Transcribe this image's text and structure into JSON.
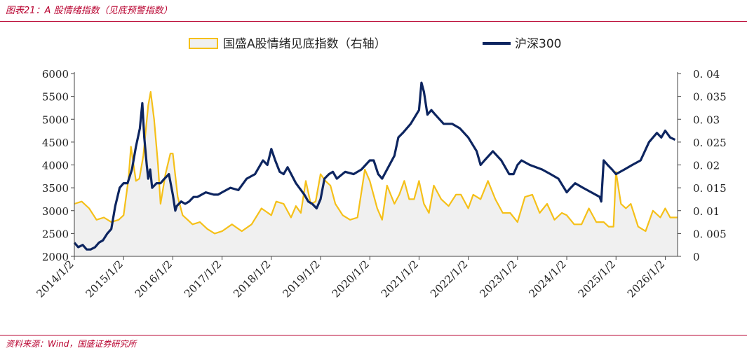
{
  "figure_title": "图表21：A 股情绪指数（见底预警指数）",
  "source": "资料来源：Wind，国盛证券研究所",
  "chart_data": {
    "type": "area",
    "legend": {
      "placement": "top-center",
      "entries": [
        {
          "label": "国盛A股情绪见底指数（右轴）",
          "style": "area",
          "color": "#f5c019",
          "fill": "#f0f0f0"
        },
        {
          "label": "沪深300",
          "style": "line",
          "color": "#0d2560"
        }
      ]
    },
    "yleft": {
      "min": 2000,
      "max": 6000,
      "ticks": [
        "2000",
        "2500",
        "3000",
        "3500",
        "4000",
        "4500",
        "5000",
        "5500",
        "6000"
      ]
    },
    "yright": {
      "min": 0,
      "max": 0.04,
      "ticks": [
        "0",
        "0.005",
        "0.01",
        "0.015",
        "0.02",
        "0.025",
        "0.03",
        "0.035",
        "0.04"
      ]
    },
    "xaxis": {
      "ticks": [
        "2014/1/2",
        "2015/1/2",
        "2016/1/2",
        "2017/1/2",
        "2018/1/2",
        "2019/1/2",
        "2020/1/2",
        "2021/1/2",
        "2022/1/2",
        "2023/1/2",
        "2024/1/2",
        "2025/1/2",
        "2026/1/2"
      ]
    },
    "series": [
      {
        "name": "国盛A股情绪见底指数（右轴）",
        "axis": "right",
        "x": [
          2014.0,
          2014.15,
          2014.3,
          2014.45,
          2014.6,
          2014.75,
          2014.9,
          2015.0,
          2015.1,
          2015.15,
          2015.25,
          2015.32,
          2015.4,
          2015.5,
          2015.55,
          2015.62,
          2015.7,
          2015.75,
          2015.85,
          2015.95,
          2016.0,
          2016.1,
          2016.2,
          2016.3,
          2016.4,
          2016.55,
          2016.7,
          2016.85,
          2017.0,
          2017.2,
          2017.4,
          2017.6,
          2017.8,
          2018.0,
          2018.1,
          2018.25,
          2018.4,
          2018.5,
          2018.6,
          2018.7,
          2018.8,
          2018.9,
          2019.0,
          2019.1,
          2019.2,
          2019.3,
          2019.45,
          2019.6,
          2019.75,
          2019.9,
          2020.0,
          2020.15,
          2020.25,
          2020.35,
          2020.5,
          2020.6,
          2020.7,
          2020.8,
          2020.9,
          2021.0,
          2021.1,
          2021.2,
          2021.3,
          2021.45,
          2021.6,
          2021.75,
          2021.85,
          2022.0,
          2022.1,
          2022.25,
          2022.4,
          2022.55,
          2022.7,
          2022.85,
          2023.0,
          2023.15,
          2023.3,
          2023.45,
          2023.6,
          2023.75,
          2023.9,
          2024.0,
          2024.15,
          2024.3,
          2024.45,
          2024.6,
          2024.75,
          2024.85,
          2024.95,
          2025.0,
          2025.1,
          2025.2,
          2025.3,
          2025.45,
          2025.6,
          2025.75,
          2025.9,
          2026.0,
          2026.1,
          2026.25
        ],
        "values": [
          0.0115,
          0.012,
          0.0105,
          0.008,
          0.0085,
          0.0075,
          0.008,
          0.009,
          0.017,
          0.024,
          0.0165,
          0.017,
          0.022,
          0.033,
          0.036,
          0.03,
          0.02,
          0.0115,
          0.018,
          0.0225,
          0.0225,
          0.013,
          0.009,
          0.008,
          0.007,
          0.0075,
          0.006,
          0.005,
          0.0055,
          0.007,
          0.0055,
          0.007,
          0.0105,
          0.009,
          0.012,
          0.0115,
          0.0085,
          0.011,
          0.0095,
          0.0165,
          0.0115,
          0.012,
          0.018,
          0.0165,
          0.0155,
          0.0115,
          0.009,
          0.008,
          0.0085,
          0.019,
          0.0165,
          0.0105,
          0.008,
          0.0155,
          0.0115,
          0.0135,
          0.0165,
          0.0125,
          0.0125,
          0.0165,
          0.0115,
          0.0095,
          0.0155,
          0.0125,
          0.011,
          0.0135,
          0.0135,
          0.0105,
          0.0135,
          0.0125,
          0.0165,
          0.0125,
          0.0095,
          0.0095,
          0.0075,
          0.013,
          0.0135,
          0.0095,
          0.0115,
          0.008,
          0.0095,
          0.009,
          0.007,
          0.007,
          0.0105,
          0.0075,
          0.0075,
          0.0065,
          0.0065,
          0.0185,
          0.0115,
          0.0105,
          0.0115,
          0.0065,
          0.0055,
          0.01,
          0.0085,
          0.0105,
          0.0085,
          0.0085
        ]
      },
      {
        "name": "沪深300",
        "axis": "left",
        "x": [
          2014.0,
          2014.08,
          2014.17,
          2014.25,
          2014.33,
          2014.42,
          2014.5,
          2014.58,
          2014.67,
          2014.75,
          2014.83,
          2014.92,
          2015.0,
          2015.08,
          2015.17,
          2015.25,
          2015.33,
          2015.38,
          2015.42,
          2015.47,
          2015.5,
          2015.54,
          2015.58,
          2015.67,
          2015.75,
          2015.83,
          2015.92,
          2016.0,
          2016.05,
          2016.08,
          2016.17,
          2016.25,
          2016.33,
          2016.42,
          2016.5,
          2016.67,
          2016.83,
          2016.92,
          2017.0,
          2017.17,
          2017.33,
          2017.5,
          2017.67,
          2017.83,
          2017.92,
          2018.0,
          2018.08,
          2018.17,
          2018.25,
          2018.33,
          2018.5,
          2018.67,
          2018.75,
          2018.83,
          2018.92,
          2019.0,
          2019.08,
          2019.17,
          2019.25,
          2019.33,
          2019.5,
          2019.67,
          2019.83,
          2020.0,
          2020.08,
          2020.17,
          2020.25,
          2020.5,
          2020.58,
          2020.67,
          2020.83,
          2021.0,
          2021.05,
          2021.1,
          2021.17,
          2021.25,
          2021.33,
          2021.5,
          2021.67,
          2021.83,
          2022.0,
          2022.17,
          2022.25,
          2022.33,
          2022.5,
          2022.67,
          2022.83,
          2022.92,
          2023.0,
          2023.08,
          2023.25,
          2023.5,
          2023.67,
          2023.83,
          2024.0,
          2024.08,
          2024.17,
          2024.33,
          2024.5,
          2024.67,
          2024.7,
          2024.75,
          2024.83,
          2024.92,
          2025.0,
          2025.17,
          2025.33,
          2025.5,
          2025.67,
          2025.83,
          2025.92,
          2026.0,
          2026.1,
          2026.2
        ],
        "values": [
          2300,
          2200,
          2250,
          2150,
          2150,
          2200,
          2300,
          2350,
          2500,
          2600,
          3100,
          3500,
          3600,
          3600,
          3900,
          4400,
          4800,
          5350,
          4600,
          4000,
          3700,
          3900,
          3500,
          3600,
          3600,
          3700,
          3800,
          3350,
          3000,
          3100,
          3200,
          3150,
          3200,
          3300,
          3300,
          3400,
          3350,
          3350,
          3400,
          3500,
          3450,
          3700,
          3800,
          4100,
          4000,
          4350,
          4100,
          3850,
          3800,
          3950,
          3600,
          3350,
          3200,
          3150,
          3050,
          3250,
          3700,
          3800,
          3850,
          3700,
          3850,
          3800,
          3900,
          4100,
          4100,
          3800,
          3700,
          4200,
          4600,
          4700,
          4900,
          5200,
          5800,
          5600,
          5100,
          5200,
          5100,
          4900,
          4900,
          4800,
          4600,
          4300,
          4000,
          4100,
          4300,
          4100,
          3800,
          3800,
          4000,
          4100,
          4000,
          3900,
          3800,
          3700,
          3400,
          3500,
          3600,
          3500,
          3400,
          3300,
          3200,
          4100,
          4000,
          3900,
          3800,
          3900,
          4000,
          4100,
          4500,
          4700,
          4600,
          4750,
          4600,
          4550
        ]
      }
    ]
  }
}
